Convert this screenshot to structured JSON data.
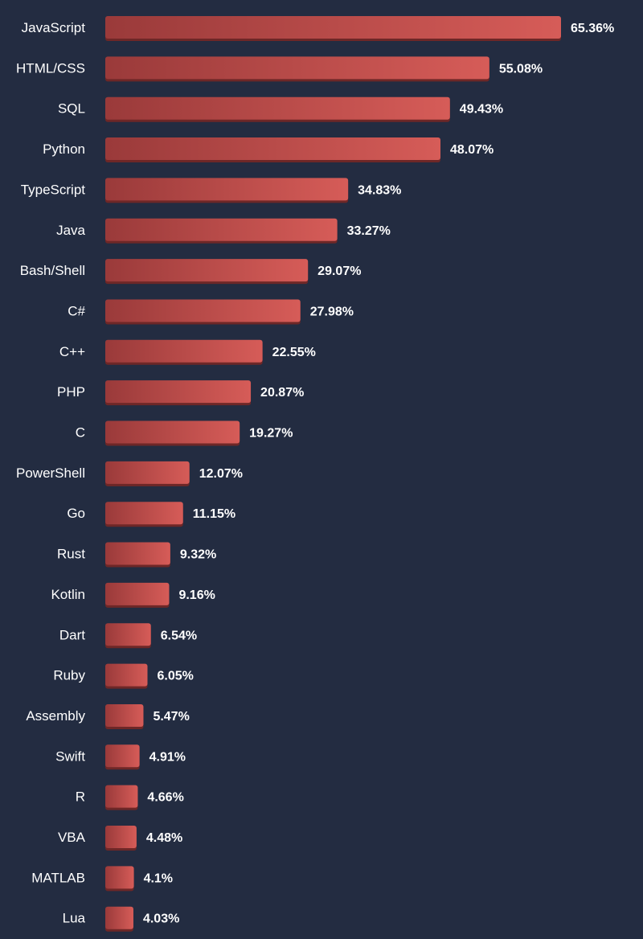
{
  "chart_data": {
    "type": "bar",
    "orientation": "horizontal",
    "categories": [
      "JavaScript",
      "HTML/CSS",
      "SQL",
      "Python",
      "TypeScript",
      "Java",
      "Bash/Shell",
      "C#",
      "C++",
      "PHP",
      "C",
      "PowerShell",
      "Go",
      "Rust",
      "Kotlin",
      "Dart",
      "Ruby",
      "Assembly",
      "Swift",
      "R",
      "VBA",
      "MATLAB",
      "Lua"
    ],
    "values": [
      65.36,
      55.08,
      49.43,
      48.07,
      34.83,
      33.27,
      29.07,
      27.98,
      22.55,
      20.87,
      19.27,
      12.07,
      11.15,
      9.32,
      9.16,
      6.54,
      6.05,
      5.47,
      4.91,
      4.66,
      4.48,
      4.1,
      4.03
    ],
    "value_labels": [
      "65.36%",
      "55.08%",
      "49.43%",
      "48.07%",
      "34.83%",
      "33.27%",
      "29.07%",
      "27.98%",
      "22.55%",
      "20.87%",
      "19.27%",
      "12.07%",
      "11.15%",
      "9.32%",
      "9.16%",
      "6.54%",
      "6.05%",
      "5.47%",
      "4.91%",
      "4.66%",
      "4.48%",
      "4.1%",
      "4.03%"
    ],
    "unit": "%",
    "xlim": [
      0,
      65.36
    ],
    "grid": false,
    "legend": "none"
  },
  "colors": {
    "background": "#232c41",
    "bar_start": "#9a3a3a",
    "bar_end": "#d65c58",
    "bar_shadow": "#6e2727",
    "text": "#ffffff"
  }
}
